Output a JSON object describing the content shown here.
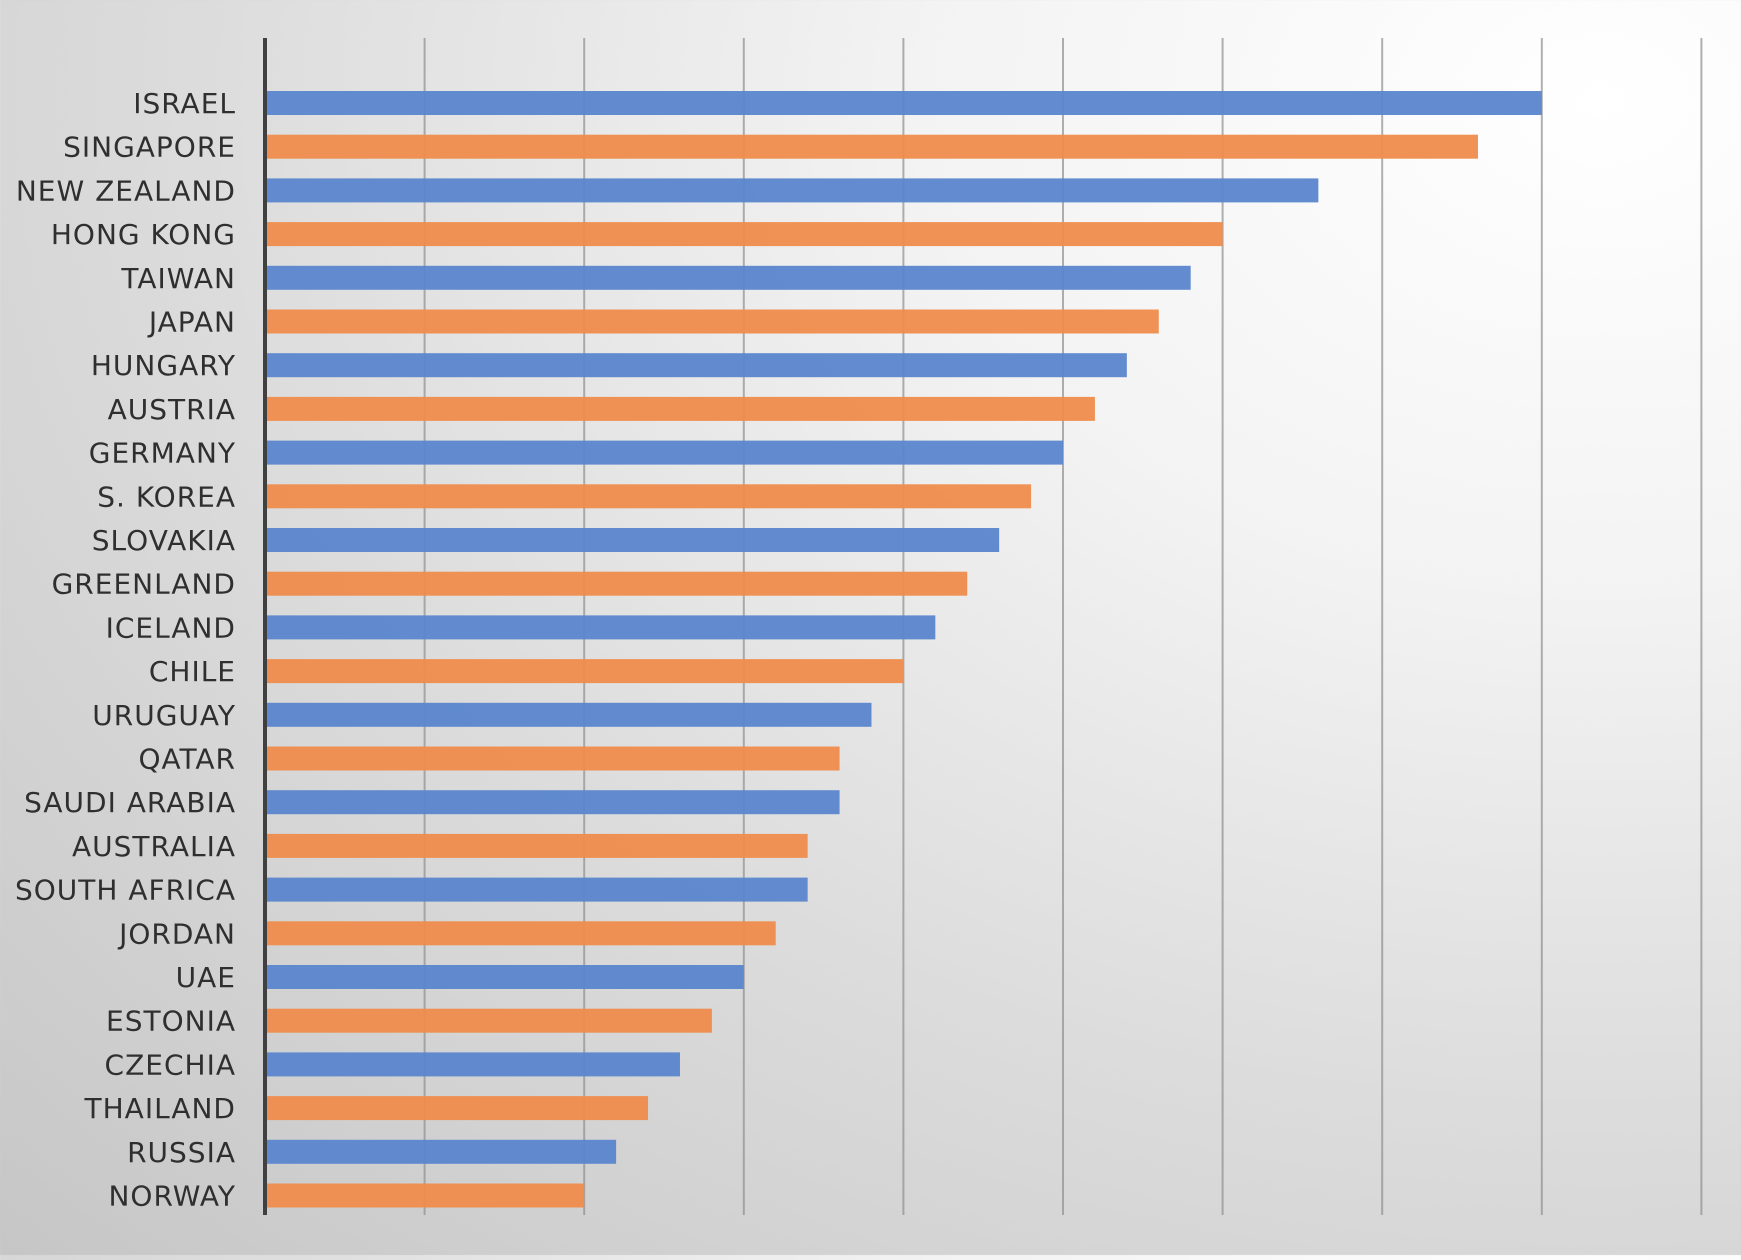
{
  "chart_data": {
    "type": "bar",
    "orientation": "horizontal",
    "title": "",
    "xlabel": "",
    "ylabel": "",
    "grid": true,
    "legend": "none",
    "xlim": [
      0,
      9
    ],
    "x_ticks": [
      0,
      1,
      2,
      3,
      4,
      5,
      6,
      7,
      8,
      9
    ],
    "tick_labels_visible": false,
    "colors": {
      "blue": "#5a86cc",
      "orange": "#ef8c4c"
    },
    "bar_color_pattern": [
      "blue",
      "orange"
    ],
    "categories": [
      "ISRAEL",
      "SINGAPORE",
      "NEW ZEALAND",
      "HONG KONG",
      "TAIWAN",
      "JAPAN",
      "HUNGARY",
      "AUSTRIA",
      "GERMANY",
      "S. KOREA",
      "SLOVAKIA",
      "GREENLAND",
      "ICELAND",
      "CHILE",
      "URUGUAY",
      "QATAR",
      "SAUDI ARABIA",
      "AUSTRALIA",
      "SOUTH AFRICA",
      "JORDAN",
      "UAE",
      "ESTONIA",
      "CZECHIA",
      "THAILAND",
      "RUSSIA",
      "NORWAY"
    ],
    "values": [
      8.0,
      7.6,
      6.6,
      6.0,
      5.8,
      5.6,
      5.4,
      5.2,
      5.0,
      4.8,
      4.6,
      4.4,
      4.2,
      4.0,
      3.8,
      3.6,
      3.6,
      3.4,
      3.4,
      3.2,
      3.0,
      2.8,
      2.6,
      2.4,
      2.2,
      2.0
    ]
  }
}
